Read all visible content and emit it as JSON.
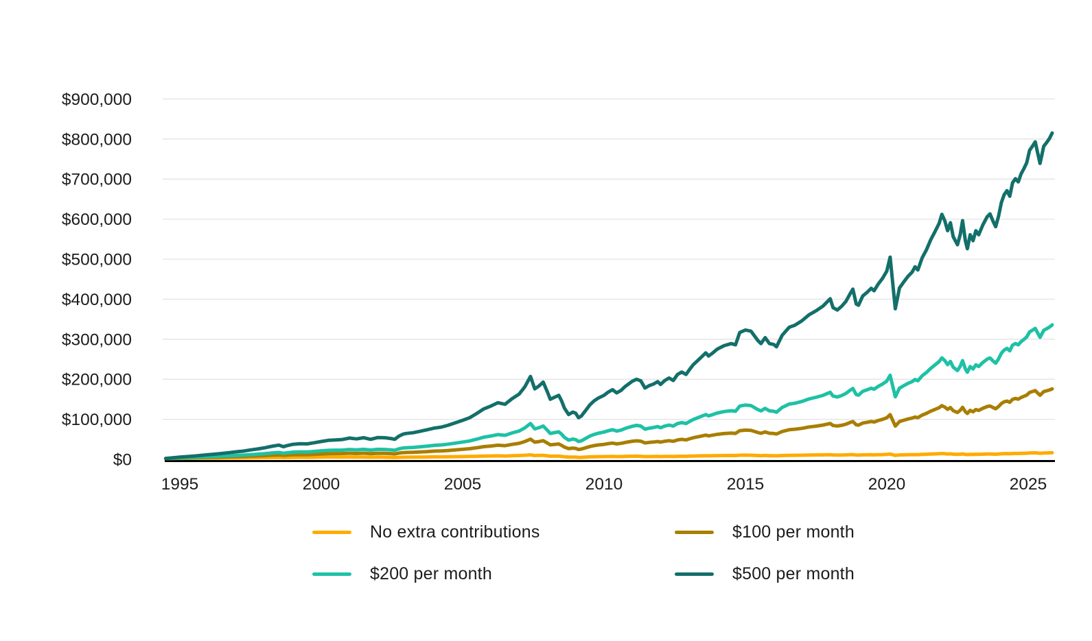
{
  "chart_data": {
    "type": "line",
    "title": "",
    "xlabel": "",
    "ylabel": "",
    "values_unit": "USD thousands",
    "xlim": [
      1994.45,
      2026.0
    ],
    "ylim_k": [
      0,
      900
    ],
    "grid": "horizontal",
    "legend_position": "bottom-two-columns",
    "y_ticks": [
      {
        "value_k": 0,
        "label": "$0"
      },
      {
        "value_k": 100,
        "label": "$100,000"
      },
      {
        "value_k": 200,
        "label": "$200,000"
      },
      {
        "value_k": 300,
        "label": "$300,000"
      },
      {
        "value_k": 400,
        "label": "$400,000"
      },
      {
        "value_k": 500,
        "label": "$500,000"
      },
      {
        "value_k": 600,
        "label": "$600,000"
      },
      {
        "value_k": 700,
        "label": "$700,000"
      },
      {
        "value_k": 800,
        "label": "$800,000"
      },
      {
        "value_k": 900,
        "label": "$900,000"
      }
    ],
    "x_ticks": [
      {
        "value": 1995,
        "label": "1995"
      },
      {
        "value": 2000,
        "label": "2000"
      },
      {
        "value": 2005,
        "label": "2005"
      },
      {
        "value": 2010,
        "label": "2010"
      },
      {
        "value": 2015,
        "label": "2015"
      },
      {
        "value": 2020,
        "label": "2020"
      },
      {
        "value": 2025,
        "label": "2025"
      }
    ],
    "x": [
      1994.5,
      1994.75,
      1995,
      1995.25,
      1995.5,
      1995.75,
      1996,
      1996.25,
      1996.5,
      1996.75,
      1997,
      1997.25,
      1997.5,
      1997.75,
      1998,
      1998.25,
      1998.5,
      1998.67,
      1998.75,
      1999,
      1999.25,
      1999.5,
      1999.75,
      2000,
      2000.25,
      2000.5,
      2000.75,
      2001,
      2001.25,
      2001.5,
      2001.75,
      2002,
      2002.25,
      2002.5,
      2002.6,
      2002.75,
      2002.9,
      2003,
      2003.25,
      2003.5,
      2003.75,
      2004,
      2004.25,
      2004.5,
      2004.75,
      2005,
      2005.25,
      2005.5,
      2005.75,
      2006,
      2006.25,
      2006.5,
      2006.75,
      2007,
      2007.2,
      2007.4,
      2007.55,
      2007.7,
      2007.85,
      2008,
      2008.1,
      2008.25,
      2008.4,
      2008.5,
      2008.6,
      2008.75,
      2008.9,
      2009,
      2009.1,
      2009.2,
      2009.35,
      2009.5,
      2009.65,
      2009.8,
      2010,
      2010.15,
      2010.3,
      2010.45,
      2010.6,
      2010.75,
      2011,
      2011.15,
      2011.3,
      2011.45,
      2011.6,
      2011.75,
      2011.9,
      2012,
      2012.15,
      2012.3,
      2012.45,
      2012.6,
      2012.75,
      2012.9,
      2013,
      2013.15,
      2013.35,
      2013.6,
      2013.7,
      2013.85,
      2014,
      2014.25,
      2014.5,
      2014.65,
      2014.8,
      2015,
      2015.2,
      2015.45,
      2015.55,
      2015.7,
      2015.85,
      2016,
      2016.1,
      2016.3,
      2016.55,
      2016.75,
      2017,
      2017.25,
      2017.5,
      2017.75,
      2018,
      2018.1,
      2018.25,
      2018.4,
      2018.55,
      2018.7,
      2018.8,
      2018.92,
      2019,
      2019.15,
      2019.3,
      2019.45,
      2019.55,
      2019.7,
      2019.85,
      2020,
      2020.12,
      2020.3,
      2020.45,
      2020.6,
      2020.75,
      2020.9,
      2021,
      2021.1,
      2021.25,
      2021.4,
      2021.55,
      2021.7,
      2021.85,
      2021.95,
      2022.05,
      2022.15,
      2022.25,
      2022.35,
      2022.5,
      2022.6,
      2022.68,
      2022.78,
      2022.85,
      2022.95,
      2023.05,
      2023.15,
      2023.25,
      2023.4,
      2023.55,
      2023.65,
      2023.75,
      2023.85,
      2023.95,
      2024.05,
      2024.15,
      2024.25,
      2024.35,
      2024.45,
      2024.55,
      2024.65,
      2024.75,
      2024.85,
      2024.95,
      2025.05,
      2025.15,
      2025.25,
      2025.35,
      2025.42,
      2025.55,
      2025.65,
      2025.75,
      2025.85
    ],
    "series": [
      {
        "id": "no-extra-contributions",
        "name": "No extra contributions",
        "color": "#FFAB00",
        "stroke_width": 5,
        "values_k": [
          2.2,
          2.3,
          2.4,
          2.5,
          2.7,
          2.9,
          3.0,
          3.1,
          3.2,
          3.4,
          3.5,
          3.6,
          3.9,
          4.1,
          4.3,
          4.6,
          4.8,
          4.2,
          4.4,
          5.0,
          5.1,
          4.9,
          5.2,
          5.6,
          5.8,
          5.8,
          5.7,
          5.9,
          5.5,
          5.7,
          5.1,
          5.4,
          5.2,
          4.7,
          4.4,
          5.0,
          5.3,
          5.3,
          5.4,
          5.6,
          5.8,
          6.1,
          6.1,
          6.3,
          6.6,
          6.9,
          7.2,
          7.6,
          8.1,
          8.4,
          8.7,
          8.3,
          8.9,
          9.4,
          10.1,
          11.2,
          9.5,
          9.7,
          10.0,
          8.7,
          7.7,
          7.8,
          7.9,
          7.3,
          6.3,
          5.4,
          5.6,
          5.4,
          4.8,
          5.0,
          5.5,
          6.1,
          6.4,
          6.6,
          6.8,
          7.0,
          7.2,
          6.8,
          6.9,
          7.3,
          7.7,
          7.8,
          7.6,
          6.8,
          6.9,
          7.0,
          7.2,
          6.9,
          7.2,
          7.4,
          7.1,
          7.6,
          7.7,
          7.5,
          7.8,
          8.3,
          8.6,
          9.1,
          8.8,
          9.0,
          9.2,
          9.5,
          9.6,
          9.4,
          10.3,
          10.5,
          10.3,
          9.4,
          9.1,
          9.6,
          9.0,
          8.9,
          8.7,
          9.5,
          10.0,
          10.1,
          10.3,
          10.7,
          10.9,
          11.2,
          11.6,
          10.9,
          10.7,
          10.8,
          11.1,
          11.6,
          11.8,
          10.7,
          10.5,
          11.1,
          11.3,
          11.4,
          11.2,
          11.6,
          11.9,
          12.3,
          13.2,
          9.7,
          11.0,
          11.2,
          11.5,
          11.7,
          11.9,
          11.7,
          12.3,
          12.7,
          13.2,
          13.6,
          14.0,
          14.5,
          14.0,
          13.4,
          13.7,
          12.9,
          12.3,
          12.8,
          13.5,
          12.3,
          11.8,
          12.5,
          12.1,
          12.6,
          12.4,
          12.9,
          13.3,
          13.4,
          13.0,
          12.6,
          13.1,
          13.8,
          14.2,
          14.3,
          13.9,
          14.6,
          14.7,
          14.5,
          14.9,
          15.1,
          15.3,
          15.9,
          16.1,
          16.3,
          15.6,
          15.1,
          15.9,
          16.0,
          16.2,
          16.4
        ]
      },
      {
        "id": "100-per-month",
        "name": "$100 per month",
        "color": "#A87E00",
        "stroke_width": 5,
        "values_k": [
          2.2,
          2.6,
          3.0,
          3.4,
          3.8,
          4.3,
          4.7,
          5.1,
          5.5,
          6.1,
          6.6,
          7.0,
          7.8,
          8.4,
          9.2,
          10.2,
          10.9,
          9.7,
          10.2,
          11.5,
          11.9,
          11.6,
          12.5,
          13.4,
          14.1,
          14.3,
          14.5,
          15.3,
          14.6,
          15.4,
          14.1,
          15.2,
          15.0,
          14.1,
          13.5,
          15.6,
          16.8,
          17.1,
          17.6,
          18.5,
          19.4,
          20.5,
          21.0,
          22.1,
          23.6,
          25.0,
          26.6,
          29.0,
          31.7,
          33.3,
          35.3,
          34.1,
          37.4,
          40.1,
          44.3,
          50.4,
          42.8,
          44.4,
          46.6,
          40.6,
          36.2,
          37.2,
          38.3,
          35.0,
          30.6,
          26.7,
          28.1,
          27.3,
          24.6,
          25.6,
          28.8,
          32.1,
          34.3,
          35.9,
          37.4,
          39.2,
          40.6,
          38.6,
          39.9,
          42.2,
          45.2,
          46.2,
          45.3,
          41.0,
          42.3,
          43.2,
          44.6,
          42.9,
          45.2,
          46.5,
          45.1,
          48.5,
          49.8,
          48.4,
          50.6,
          53.8,
          56.7,
          60.5,
          58.6,
          60.4,
          62.4,
          64.4,
          65.5,
          64.7,
          71.6,
          73.0,
          72.2,
          66.7,
          65.1,
          68.5,
          65.0,
          64.5,
          63.2,
          69.6,
          74.0,
          75.1,
          77.4,
          80.8,
          82.9,
          85.6,
          89.5,
          84.5,
          83.2,
          85.0,
          87.7,
          91.9,
          94.4,
          86.2,
          85.4,
          90.5,
          92.4,
          94.5,
          93.2,
          96.9,
          99.9,
          103.8,
          111.6,
          83.0,
          94.4,
          97.6,
          100.6,
          103.0,
          105.7,
          103.9,
          110.4,
          114.8,
          120.2,
          124.5,
          129.0,
          134.0,
          130.4,
          124.9,
          129.2,
          121.5,
          117.0,
          122.6,
          130.0,
          119.0,
          114.6,
          122.2,
          118.9,
          124.3,
          122.1,
          127.5,
          131.8,
          133.3,
          129.6,
          126.3,
          131.7,
          139.2,
          143.6,
          145.6,
          142.5,
          149.9,
          152.0,
          150.2,
          154.5,
          157.3,
          160.4,
          167.1,
          169.3,
          171.6,
          164.7,
          159.9,
          169.1,
          171.0,
          173.2,
          176.1
        ]
      },
      {
        "id": "200-per-month",
        "name": "$200 per month",
        "color": "#1EC1A5",
        "stroke_width": 5,
        "values_k": [
          2.2,
          2.9,
          3.6,
          4.2,
          4.9,
          5.7,
          6.4,
          7.1,
          7.8,
          8.8,
          9.6,
          10.4,
          11.7,
          12.8,
          14.1,
          15.8,
          17.1,
          15.1,
          16.0,
          18.0,
          18.7,
          18.3,
          19.7,
          21.2,
          22.5,
          22.9,
          23.2,
          24.7,
          23.7,
          25.0,
          23.1,
          25.0,
          24.7,
          23.4,
          22.6,
          26.2,
          28.4,
          29.0,
          29.8,
          31.4,
          33.1,
          34.9,
          35.9,
          38.0,
          40.6,
          43.1,
          45.9,
          50.4,
          55.3,
          58.2,
          61.8,
          60.0,
          65.9,
          70.8,
          78.5,
          89.5,
          76.1,
          79.0,
          83.2,
          72.4,
          64.6,
          66.7,
          68.7,
          62.8,
          55.0,
          48.0,
          50.6,
          49.2,
          44.5,
          46.2,
          52.1,
          58.1,
          62.2,
          65.2,
          68.1,
          71.4,
          73.9,
          70.5,
          72.9,
          77.2,
          82.6,
          84.7,
          83.0,
          75.3,
          77.7,
          79.4,
          81.9,
          78.9,
          83.1,
          85.6,
          83.1,
          89.4,
          91.8,
          89.3,
          93.5,
          99.4,
          104.8,
          111.9,
          108.5,
          111.8,
          115.5,
          119.3,
          121.4,
          120.0,
          133.0,
          135.5,
          134.2,
          124.0,
          121.1,
          127.4,
          121.0,
          120.1,
          117.6,
          129.7,
          138.0,
          140.1,
          144.6,
          150.8,
          154.9,
          159.9,
          167.4,
          158.1,
          155.6,
          159.3,
          164.3,
          172.2,
          177.1,
          161.6,
          160.3,
          169.9,
          173.6,
          177.6,
          175.1,
          182.2,
          188.0,
          195.4,
          209.9,
          156.2,
          177.8,
          183.9,
          189.7,
          194.2,
          199.5,
          196.2,
          208.6,
          216.8,
          227.1,
          235.4,
          244.0,
          253.5,
          246.8,
          236.4,
          244.6,
          230.1,
          221.8,
          232.5,
          246.5,
          225.8,
          217.5,
          231.9,
          225.7,
          236.0,
          231.8,
          242.1,
          250.4,
          253.2,
          246.2,
          240.0,
          250.3,
          264.7,
          272.9,
          277.0,
          271.1,
          285.2,
          289.2,
          285.9,
          294.1,
          299.5,
          305.6,
          318.3,
          322.5,
          327.0,
          313.8,
          304.7,
          322.3,
          326.0,
          330.1,
          335.8
        ]
      },
      {
        "id": "500-per-month",
        "name": "$500 per month",
        "color": "#136F6A",
        "stroke_width": 5,
        "values_k": [
          2.2,
          3.9,
          5.5,
          6.8,
          8.2,
          9.8,
          11.5,
          13.0,
          14.8,
          16.8,
          18.8,
          20.5,
          23.5,
          25.8,
          28.8,
          32.5,
          35.5,
          31.5,
          33.5,
          37.5,
          39.0,
          38.5,
          41.5,
          44.5,
          47.5,
          48.5,
          49.5,
          53.0,
          51.0,
          54.0,
          50.0,
          54.5,
          54.0,
          51.5,
          50.0,
          58.0,
          63.0,
          64.5,
          66.5,
          70.0,
          74.0,
          78.0,
          80.5,
          85.5,
          91.5,
          97.5,
          104.0,
          114.5,
          126.0,
          133.0,
          141.5,
          137.5,
          151.5,
          163.0,
          181.0,
          207.0,
          176.0,
          183.0,
          193.0,
          168.0,
          150.0,
          155.0,
          160.0,
          146.0,
          128.0,
          112.0,
          118.0,
          115.0,
          104.0,
          108.0,
          122.0,
          136.0,
          146.0,
          153.0,
          160.0,
          168.0,
          174.0,
          166.0,
          172.0,
          182.0,
          195.0,
          200.0,
          196.0,
          178.0,
          184.0,
          188.0,
          194.0,
          187.0,
          197.0,
          203.0,
          197.0,
          212.0,
          218.0,
          212.0,
          222.0,
          236.0,
          249.0,
          266.0,
          258.0,
          266.0,
          275.0,
          284.0,
          289.0,
          286.0,
          317.0,
          323.0,
          320.0,
          296.0,
          289.0,
          304.0,
          289.0,
          287.0,
          281.0,
          310.0,
          330.0,
          335.0,
          346.0,
          361.0,
          371.0,
          383.0,
          401.0,
          379.0,
          373.0,
          382.0,
          394.0,
          413.0,
          425.0,
          388.0,
          385.0,
          408.0,
          417.0,
          427.0,
          421.0,
          438.0,
          452.0,
          470.0,
          505.0,
          376.0,
          428.0,
          443.0,
          457.0,
          468.0,
          481.0,
          473.0,
          503.0,
          523.0,
          548.0,
          568.0,
          589.0,
          612.0,
          596.0,
          571.0,
          591.0,
          556.0,
          536.0,
          562.0,
          596.0,
          546.0,
          526.0,
          561.0,
          546.0,
          571.0,
          561.0,
          586.0,
          606.0,
          613.0,
          596.0,
          581.0,
          606.0,
          641.0,
          661.0,
          671.0,
          657.0,
          691.0,
          701.0,
          693.0,
          713.0,
          726.0,
          741.0,
          772.0,
          782.0,
          793.0,
          761.0,
          739.0,
          782.0,
          791.0,
          801.0,
          815.0
        ]
      }
    ],
    "axis_color": "#000000",
    "gridline_color": "#E3E3E3",
    "tick_text_color": "#1c1c1c"
  }
}
